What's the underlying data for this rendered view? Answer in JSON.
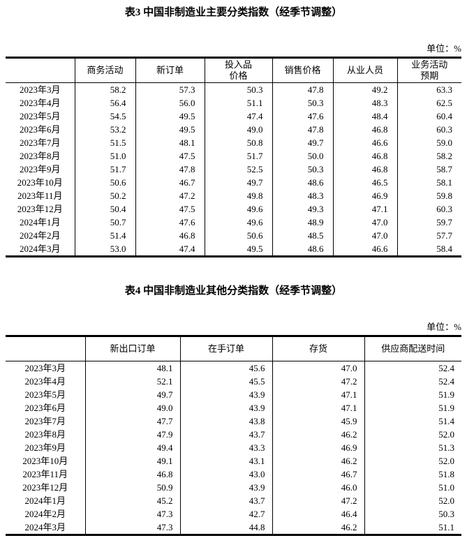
{
  "colors": {
    "text": "#000000",
    "border": "#000000",
    "background": "#ffffff"
  },
  "tables": [
    {
      "title": "表3 中国非制造业主要分类指数（经季节调整）",
      "unit": "单位：%",
      "columns": [
        "",
        "商务活动",
        "新订单",
        "投入品\n价格",
        "销售价格",
        "从业人员",
        "业务活动\n预期"
      ],
      "rows": [
        {
          "label": "2023年3月",
          "values": [
            "58.2",
            "57.3",
            "50.3",
            "47.8",
            "49.2",
            "63.3"
          ]
        },
        {
          "label": "2023年4月",
          "values": [
            "56.4",
            "56.0",
            "51.1",
            "50.3",
            "48.3",
            "62.5"
          ]
        },
        {
          "label": "2023年5月",
          "values": [
            "54.5",
            "49.5",
            "47.4",
            "47.6",
            "48.4",
            "60.4"
          ]
        },
        {
          "label": "2023年6月",
          "values": [
            "53.2",
            "49.5",
            "49.0",
            "47.8",
            "46.8",
            "60.3"
          ]
        },
        {
          "label": "2023年7月",
          "values": [
            "51.5",
            "48.1",
            "50.8",
            "49.7",
            "46.6",
            "59.0"
          ]
        },
        {
          "label": "2023年8月",
          "values": [
            "51.0",
            "47.5",
            "51.7",
            "50.0",
            "46.8",
            "58.2"
          ]
        },
        {
          "label": "2023年9月",
          "values": [
            "51.7",
            "47.8",
            "52.5",
            "50.3",
            "46.8",
            "58.7"
          ]
        },
        {
          "label": "2023年10月",
          "values": [
            "50.6",
            "46.7",
            "49.7",
            "48.6",
            "46.5",
            "58.1"
          ]
        },
        {
          "label": "2023年11月",
          "values": [
            "50.2",
            "47.2",
            "49.8",
            "48.3",
            "46.9",
            "59.8"
          ]
        },
        {
          "label": "2023年12月",
          "values": [
            "50.4",
            "47.5",
            "49.6",
            "49.3",
            "47.1",
            "60.3"
          ]
        },
        {
          "label": "2024年1月",
          "values": [
            "50.7",
            "47.6",
            "49.6",
            "48.9",
            "47.0",
            "59.7"
          ]
        },
        {
          "label": "2024年2月",
          "values": [
            "51.4",
            "46.8",
            "50.6",
            "48.5",
            "47.0",
            "57.7"
          ]
        },
        {
          "label": "2024年3月",
          "values": [
            "53.0",
            "47.4",
            "49.5",
            "48.6",
            "46.6",
            "58.4"
          ]
        }
      ]
    },
    {
      "title": "表4 中国非制造业其他分类指数（经季节调整）",
      "unit": "单位：%",
      "columns": [
        "",
        "新出口订单",
        "在手订单",
        "存货",
        "供应商配送时间"
      ],
      "rows": [
        {
          "label": "2023年3月",
          "values": [
            "48.1",
            "45.6",
            "47.0",
            "52.4"
          ]
        },
        {
          "label": "2023年4月",
          "values": [
            "52.1",
            "45.5",
            "47.2",
            "52.4"
          ]
        },
        {
          "label": "2023年5月",
          "values": [
            "49.7",
            "43.9",
            "47.1",
            "51.9"
          ]
        },
        {
          "label": "2023年6月",
          "values": [
            "49.0",
            "43.9",
            "47.1",
            "51.9"
          ]
        },
        {
          "label": "2023年7月",
          "values": [
            "47.7",
            "43.8",
            "45.9",
            "51.4"
          ]
        },
        {
          "label": "2023年8月",
          "values": [
            "47.9",
            "43.7",
            "46.2",
            "52.0"
          ]
        },
        {
          "label": "2023年9月",
          "values": [
            "49.4",
            "43.3",
            "46.9",
            "51.3"
          ]
        },
        {
          "label": "2023年10月",
          "values": [
            "49.1",
            "43.1",
            "46.2",
            "52.0"
          ]
        },
        {
          "label": "2023年11月",
          "values": [
            "46.8",
            "43.0",
            "46.7",
            "51.8"
          ]
        },
        {
          "label": "2023年12月",
          "values": [
            "50.9",
            "43.9",
            "46.0",
            "51.0"
          ]
        },
        {
          "label": "2024年1月",
          "values": [
            "45.2",
            "43.7",
            "47.2",
            "52.0"
          ]
        },
        {
          "label": "2024年2月",
          "values": [
            "47.3",
            "42.7",
            "46.4",
            "50.3"
          ]
        },
        {
          "label": "2024年3月",
          "values": [
            "47.3",
            "44.8",
            "46.2",
            "51.1"
          ]
        }
      ]
    }
  ]
}
